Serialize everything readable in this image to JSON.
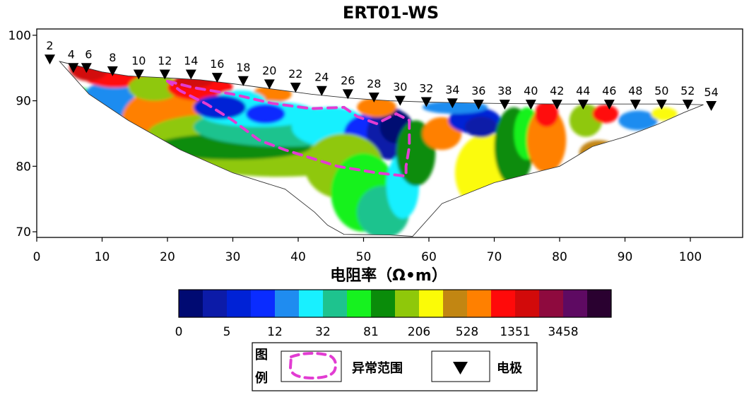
{
  "chart_data": {
    "type": "heatmap",
    "title": "ERT01-WS",
    "xlim": [
      0,
      105
    ],
    "ylim": [
      69,
      101
    ],
    "x_ticks": [
      "0",
      "10",
      "20",
      "30",
      "40",
      "50",
      "60",
      "70",
      "80",
      "90",
      "100"
    ],
    "y_ticks": [
      "70",
      "80",
      "90",
      "100"
    ],
    "grid": false,
    "electrodes": {
      "labels": [
        "2",
        "4",
        "6",
        "8",
        "10",
        "12",
        "14",
        "16",
        "18",
        "20",
        "22",
        "24",
        "26",
        "28",
        "30",
        "32",
        "34",
        "36",
        "38",
        "40",
        "42",
        "44",
        "46",
        "48",
        "50",
        "52",
        "54"
      ],
      "x": [
        2,
        5.6,
        7.6,
        11.6,
        15.6,
        19.6,
        23.6,
        27.6,
        31.6,
        35.6,
        39.6,
        43.6,
        47.6,
        51.6,
        55.6,
        59.6,
        63.6,
        67.6,
        71.6,
        75.6,
        79.6,
        83.6,
        87.6,
        91.6,
        95.6,
        99.6,
        103.2
      ],
      "y": [
        96.3,
        95,
        95,
        94.5,
        94,
        94,
        94,
        93.5,
        93,
        92.5,
        92,
        91.5,
        91,
        90.5,
        90,
        89.8,
        89.6,
        89.4,
        89.4,
        89.4,
        89.4,
        89.4,
        89.4,
        89.4,
        89.4,
        89.4,
        89.2
      ]
    },
    "section_boundary": [
      [
        3.5,
        96
      ],
      [
        6,
        95.4
      ],
      [
        10,
        94.4
      ],
      [
        14,
        93.8
      ],
      [
        20,
        93.5
      ],
      [
        25,
        93.2
      ],
      [
        30,
        92.6
      ],
      [
        36,
        91.8
      ],
      [
        42,
        91.0
      ],
      [
        48,
        90.4
      ],
      [
        54,
        90.0
      ],
      [
        60,
        89.8
      ],
      [
        70,
        89.6
      ],
      [
        80,
        89.5
      ],
      [
        90,
        89.5
      ],
      [
        97,
        89.5
      ],
      [
        102,
        89.4
      ],
      [
        99,
        88.2
      ],
      [
        95,
        86.4
      ],
      [
        90,
        84.5
      ],
      [
        85,
        83
      ],
      [
        80,
        80
      ],
      [
        70,
        77.5
      ],
      [
        62,
        74.3
      ],
      [
        57.5,
        69.3
      ],
      [
        54,
        69.5
      ],
      [
        47,
        69.6
      ],
      [
        44.5,
        71
      ],
      [
        42.5,
        73
      ],
      [
        38,
        76.5
      ],
      [
        30,
        79
      ],
      [
        22,
        82.5
      ],
      [
        14,
        87
      ],
      [
        8,
        91
      ],
      [
        3.5,
        96
      ]
    ],
    "colorbar": {
      "title": "电阻率（Ω•m）",
      "tick_labels": [
        "0",
        "5",
        "12",
        "32",
        "81",
        "206",
        "528",
        "1351",
        "3458"
      ],
      "colors": [
        "#000a72",
        "#0c1ba8",
        "#0022d6",
        "#0a2cff",
        "#1f8cf0",
        "#18f0ff",
        "#1ec38e",
        "#16f21f",
        "#0a8c0a",
        "#8fc80a",
        "#fbfb07",
        "#c28612",
        "#ff8000",
        "#ff0a0a",
        "#d20a0a",
        "#8e0a3e",
        "#5e0a62",
        "#2a0130"
      ]
    },
    "legend": {
      "heading": "图例",
      "anomaly_label": "异常范围",
      "electrode_label": "电极",
      "anomaly_color": "#e23cd2"
    }
  }
}
